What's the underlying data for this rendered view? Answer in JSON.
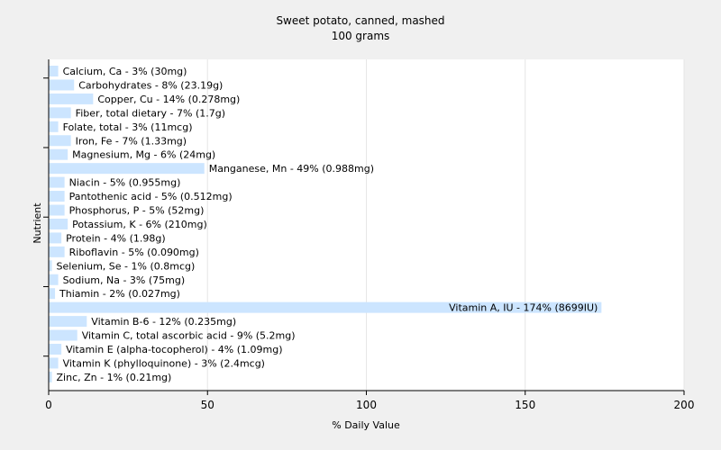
{
  "chart_data": {
    "type": "bar",
    "orientation": "horizontal",
    "title": "Sweet potato, canned, mashed",
    "subtitle": "100 grams",
    "xlabel": "% Daily Value",
    "ylabel": "Nutrient",
    "xlim": [
      0,
      200
    ],
    "xticks": [
      0,
      50,
      100,
      150,
      200
    ],
    "grid": true,
    "bar_color": "#cce5ff",
    "categories": [
      "Calcium, Ca",
      "Carbohydrates",
      "Copper, Cu",
      "Fiber, total dietary",
      "Folate, total",
      "Iron, Fe",
      "Magnesium, Mg",
      "Manganese, Mn",
      "Niacin",
      "Pantothenic acid",
      "Phosphorus, P",
      "Potassium, K",
      "Protein",
      "Riboflavin",
      "Selenium, Se",
      "Sodium, Na",
      "Thiamin",
      "Vitamin A, IU",
      "Vitamin B-6",
      "Vitamin C, total ascorbic acid",
      "Vitamin E (alpha-tocopherol)",
      "Vitamin K (phylloquinone)",
      "Zinc, Zn"
    ],
    "values": [
      3,
      8,
      14,
      7,
      3,
      7,
      6,
      49,
      5,
      5,
      5,
      6,
      4,
      5,
      1,
      3,
      2,
      174,
      12,
      9,
      4,
      3,
      1
    ],
    "labels": [
      "Calcium, Ca - 3% (30mg)",
      "Carbohydrates - 8% (23.19g)",
      "Copper, Cu - 14% (0.278mg)",
      "Fiber, total dietary - 7% (1.7g)",
      "Folate, total - 3% (11mcg)",
      "Iron, Fe - 7% (1.33mg)",
      "Magnesium, Mg - 6% (24mg)",
      "Manganese, Mn - 49% (0.988mg)",
      "Niacin - 5% (0.955mg)",
      "Pantothenic acid - 5% (0.512mg)",
      "Phosphorus, P - 5% (52mg)",
      "Potassium, K - 6% (210mg)",
      "Protein - 4% (1.98g)",
      "Riboflavin - 5% (0.090mg)",
      "Selenium, Se - 1% (0.8mcg)",
      "Sodium, Na - 3% (75mg)",
      "Thiamin - 2% (0.027mg)",
      "Vitamin A, IU - 174% (8699IU)",
      "Vitamin B-6 - 12% (0.235mg)",
      "Vitamin C, total ascorbic acid - 9% (5.2mg)",
      "Vitamin E (alpha-tocopherol) - 4% (1.09mg)",
      "Vitamin K (phylloquinone) - 3% (2.4mcg)",
      "Zinc, Zn - 1% (0.21mg)"
    ]
  }
}
